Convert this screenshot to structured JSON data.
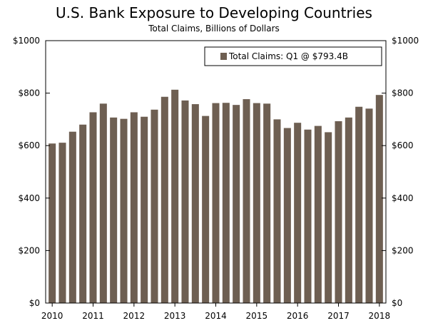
{
  "chart_data": {
    "type": "bar",
    "title": "U.S. Bank Exposure to Developing Countries",
    "subtitle": "Total Claims, Billions of Dollars",
    "ylim": [
      0,
      1000
    ],
    "y_ticks": [
      0,
      200,
      400,
      600,
      800,
      1000
    ],
    "y_tick_labels": [
      "$0",
      "$200",
      "$400",
      "$600",
      "$800",
      "$1000"
    ],
    "x_tick_labels": [
      "2010",
      "2011",
      "2012",
      "2013",
      "2014",
      "2015",
      "2016",
      "2017",
      "2018"
    ],
    "legend_position": "top-right",
    "grid": false,
    "bar_color": "#6e5f52",
    "series": [
      {
        "name": "Total Claims: Q1 @ $793.4B",
        "values": [
          608,
          611,
          653,
          680,
          727,
          760,
          707,
          702,
          727,
          710,
          737,
          786,
          813,
          772,
          758,
          713,
          762,
          763,
          755,
          777,
          762,
          760,
          700,
          667,
          687,
          661,
          675,
          651,
          693,
          707,
          748,
          741,
          793
        ]
      }
    ]
  }
}
